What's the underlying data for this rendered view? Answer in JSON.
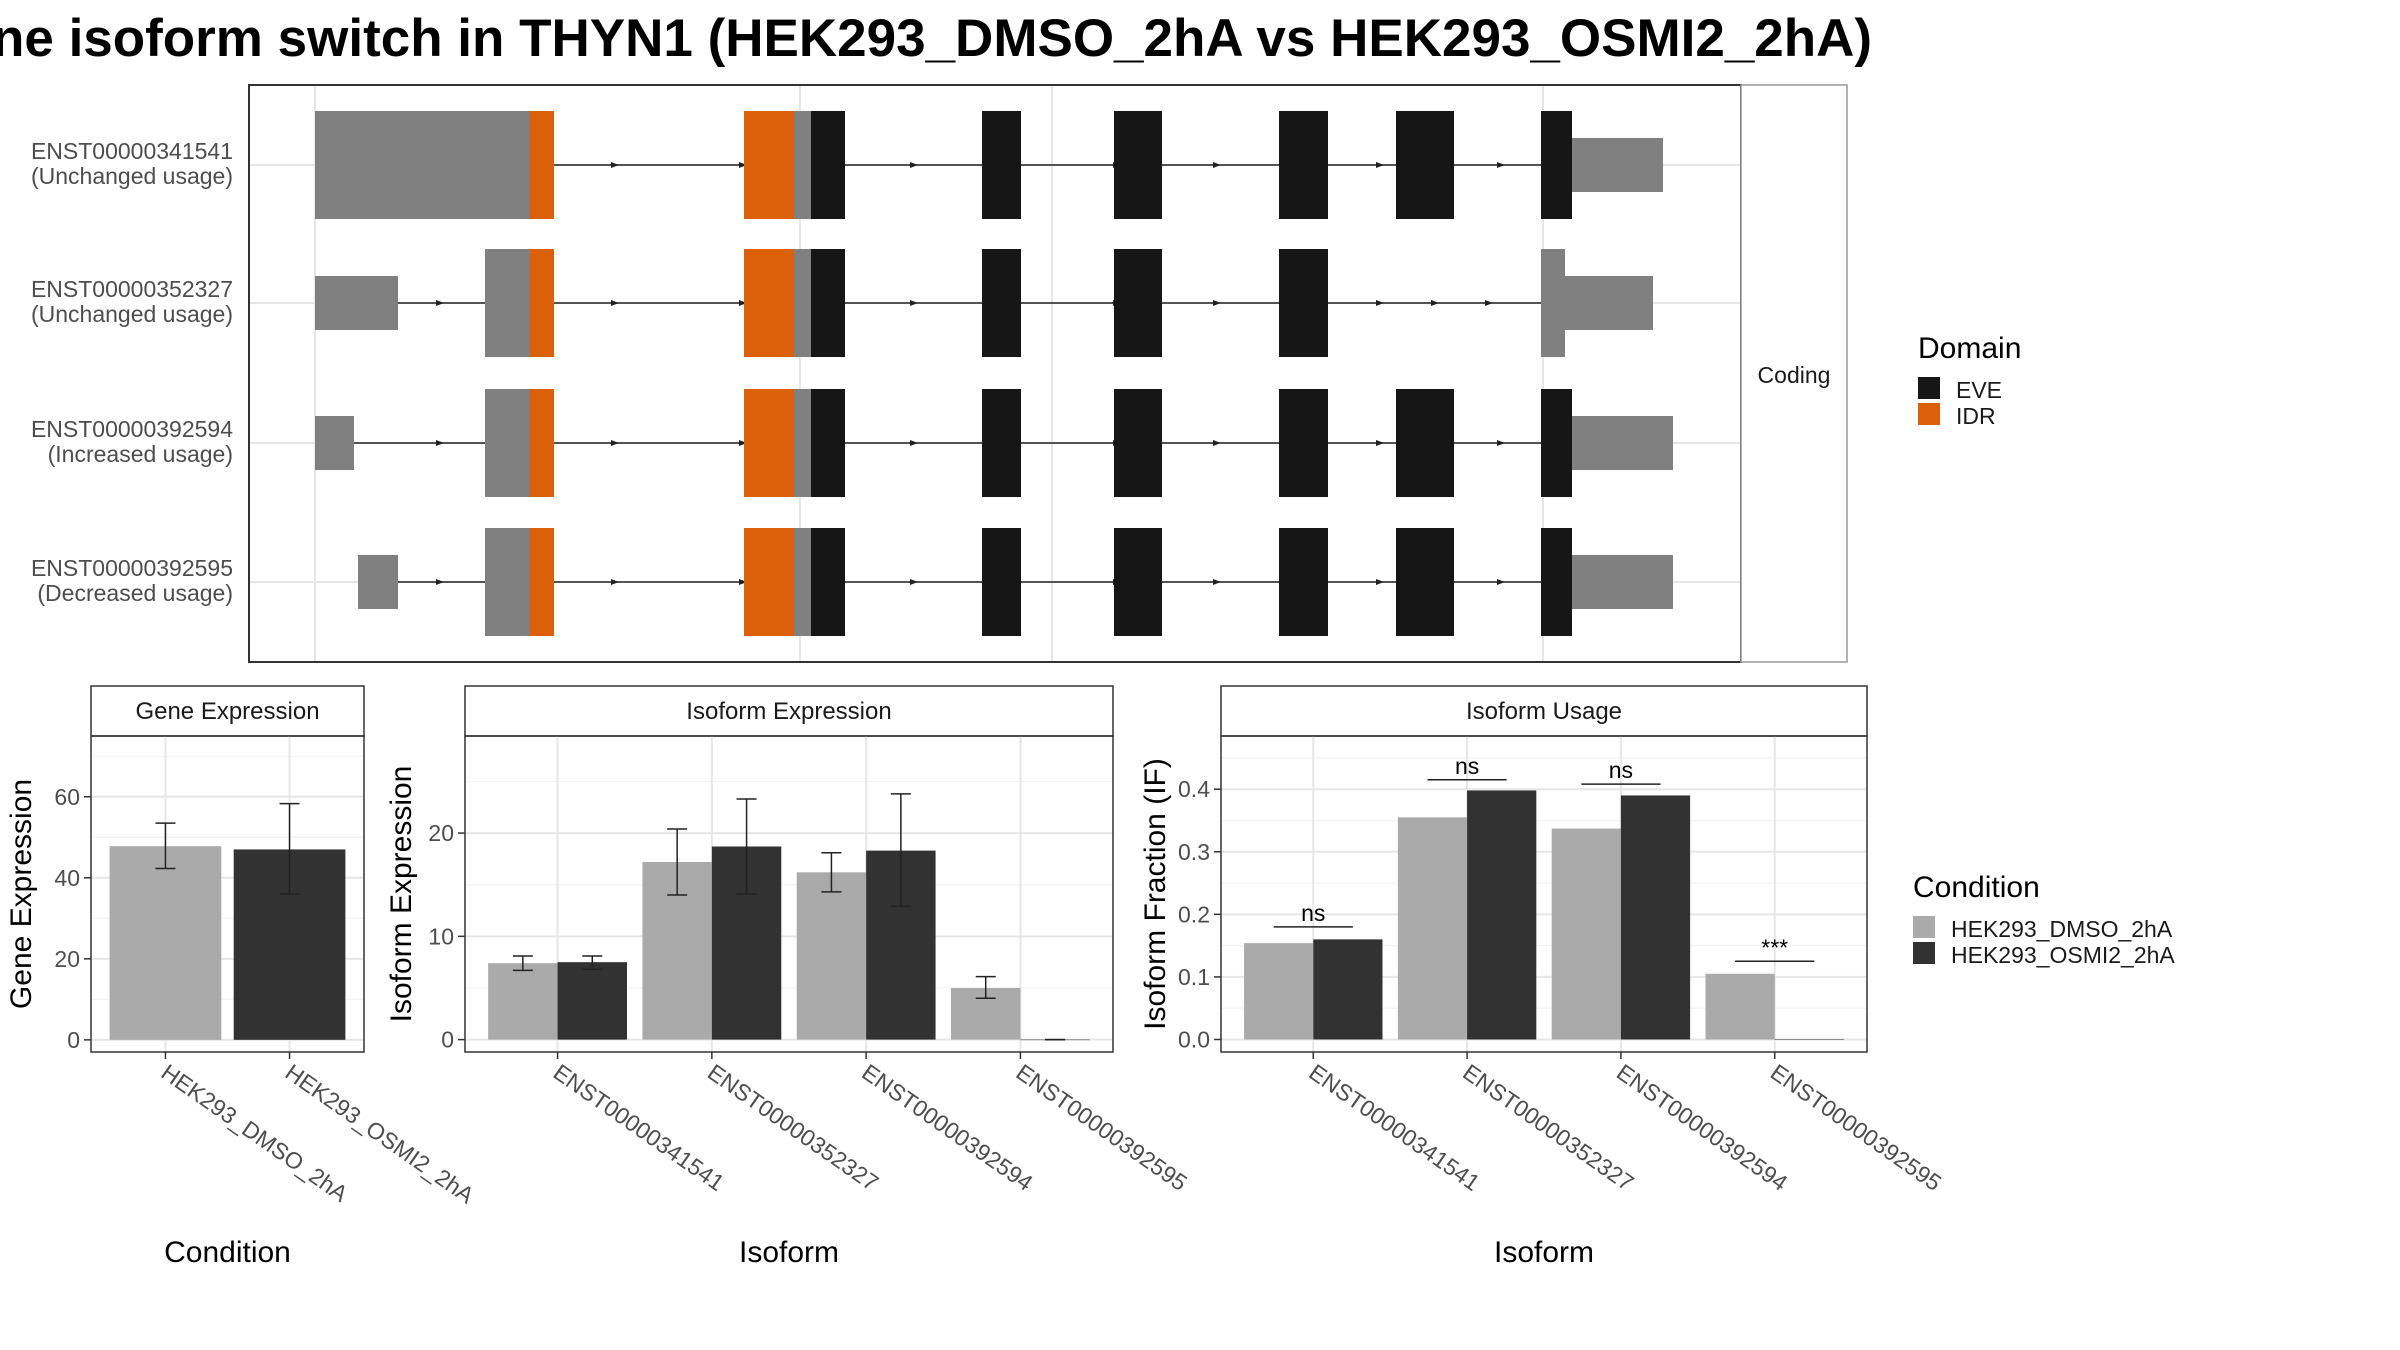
{
  "title": "ne isoform switch in THYN1 (HEK293_DMSO_2hA vs HEK293_OSMI2_2hA)",
  "colors": {
    "eve": "#161616",
    "idr": "#dc6009",
    "noncoding": "#808080",
    "dmso": "#aaaaaa",
    "osmi": "#323232",
    "grid": "#e6e6e6",
    "panel_border": "#333333",
    "strip_fill": "#ffffff"
  },
  "structure": {
    "strip_label": "Coding",
    "transcripts": [
      {
        "id": "ENST00000341541",
        "usage": "(Unchanged usage)"
      },
      {
        "id": "ENST00000352327",
        "usage": "(Unchanged usage)"
      },
      {
        "id": "ENST00000392594",
        "usage": "(Increased usage)"
      },
      {
        "id": "ENST00000392595",
        "usage": "(Decreased usage)"
      }
    ],
    "domain_legend": {
      "title": "Domain",
      "entries": [
        {
          "label": "EVE",
          "color": "#161616"
        },
        {
          "label": "IDR",
          "color": "#dc6009"
        }
      ]
    }
  },
  "condition_legend": {
    "title": "Condition",
    "entries": [
      {
        "label": "HEK293_DMSO_2hA",
        "color": "#aaaaaa"
      },
      {
        "label": "HEK293_OSMI2_2hA",
        "color": "#323232"
      }
    ]
  },
  "chart_data": [
    {
      "type": "bar",
      "title": "Gene Expression",
      "xlabel": "Condition",
      "ylabel": "Gene Expression",
      "categories": [
        "HEK293_DMSO_2hA",
        "HEK293_OSMI2_2hA"
      ],
      "values": [
        47.8,
        47.0
      ],
      "err_low": [
        42.3,
        36.0
      ],
      "err_high": [
        53.5,
        58.3
      ],
      "ylim": [
        -3,
        75
      ],
      "yticks": [
        0,
        20,
        40,
        60
      ],
      "grid": true
    },
    {
      "type": "bar",
      "title": "Isoform Expression",
      "xlabel": "Isoform",
      "ylabel": "Isoform Expression",
      "categories": [
        "ENST00000341541",
        "ENST00000352327",
        "ENST00000392594",
        "ENST00000392595"
      ],
      "series": [
        {
          "name": "HEK293_DMSO_2hA",
          "values": [
            7.4,
            17.2,
            16.2,
            5.0
          ],
          "err_low": [
            6.7,
            14.0,
            14.3,
            4.0
          ],
          "err_high": [
            8.1,
            20.4,
            18.1,
            6.1
          ]
        },
        {
          "name": "HEK293_OSMI2_2hA",
          "values": [
            7.5,
            18.7,
            18.3,
            0.0
          ],
          "err_low": [
            6.8,
            14.1,
            12.9,
            0.0
          ],
          "err_high": [
            8.1,
            23.3,
            23.8,
            0.0
          ]
        }
      ],
      "ylim": [
        -1.2,
        29.4
      ],
      "yticks": [
        0,
        10,
        20
      ],
      "grid": true
    },
    {
      "type": "bar",
      "title": "Isoform Usage",
      "xlabel": "Isoform",
      "ylabel": "Isoform Fraction (IF)",
      "categories": [
        "ENST00000341541",
        "ENST00000352327",
        "ENST00000392594",
        "ENST00000392595"
      ],
      "series": [
        {
          "name": "HEK293_DMSO_2hA",
          "values": [
            0.154,
            0.355,
            0.337,
            0.105
          ]
        },
        {
          "name": "HEK293_OSMI2_2hA",
          "values": [
            0.16,
            0.398,
            0.39,
            0.0
          ]
        }
      ],
      "significance": [
        "ns",
        "ns",
        "ns",
        "***"
      ],
      "sig_y": [
        0.18,
        0.415,
        0.408,
        0.125
      ],
      "ylim": [
        -0.02,
        0.485
      ],
      "yticks": [
        0.0,
        0.1,
        0.2,
        0.3,
        0.4
      ],
      "ytick_labels": [
        "0.0",
        "0.1",
        "0.2",
        "0.3",
        "0.4"
      ],
      "grid": true
    }
  ]
}
